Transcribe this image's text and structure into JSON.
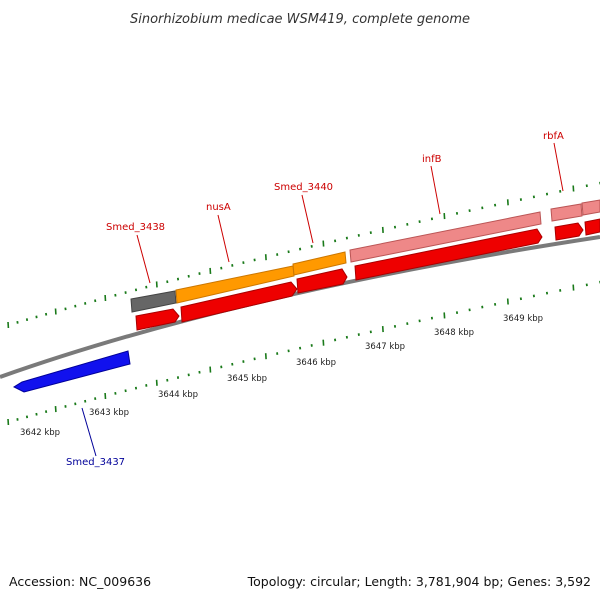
{
  "title": "Sinorhizobium medicae WSM419, complete genome",
  "footer": {
    "accession": "Accession: NC_009636",
    "summary": "Topology: circular; Length: 3,781,904 bp; Genes: 3,592"
  },
  "colors": {
    "backbone": "#888888",
    "tick": "#1a7a1a",
    "label_red": "#cc0000",
    "label_blue": "#000099"
  },
  "tick_labels": {
    "t3642": "3642 kbp",
    "t3643": "3643 kbp",
    "t3644": "3644 kbp",
    "t3645": "3645 kbp",
    "t3646": "3646 kbp",
    "t3647": "3647 kbp",
    "t3648": "3648 kbp",
    "t3649": "3649 kbp"
  },
  "gene_labels": {
    "smed3437": "Smed_3437",
    "smed3438": "Smed_3438",
    "nusA": "nusA",
    "smed3440": "Smed_3440",
    "infB": "infB",
    "rbfA": "rbfA"
  }
}
